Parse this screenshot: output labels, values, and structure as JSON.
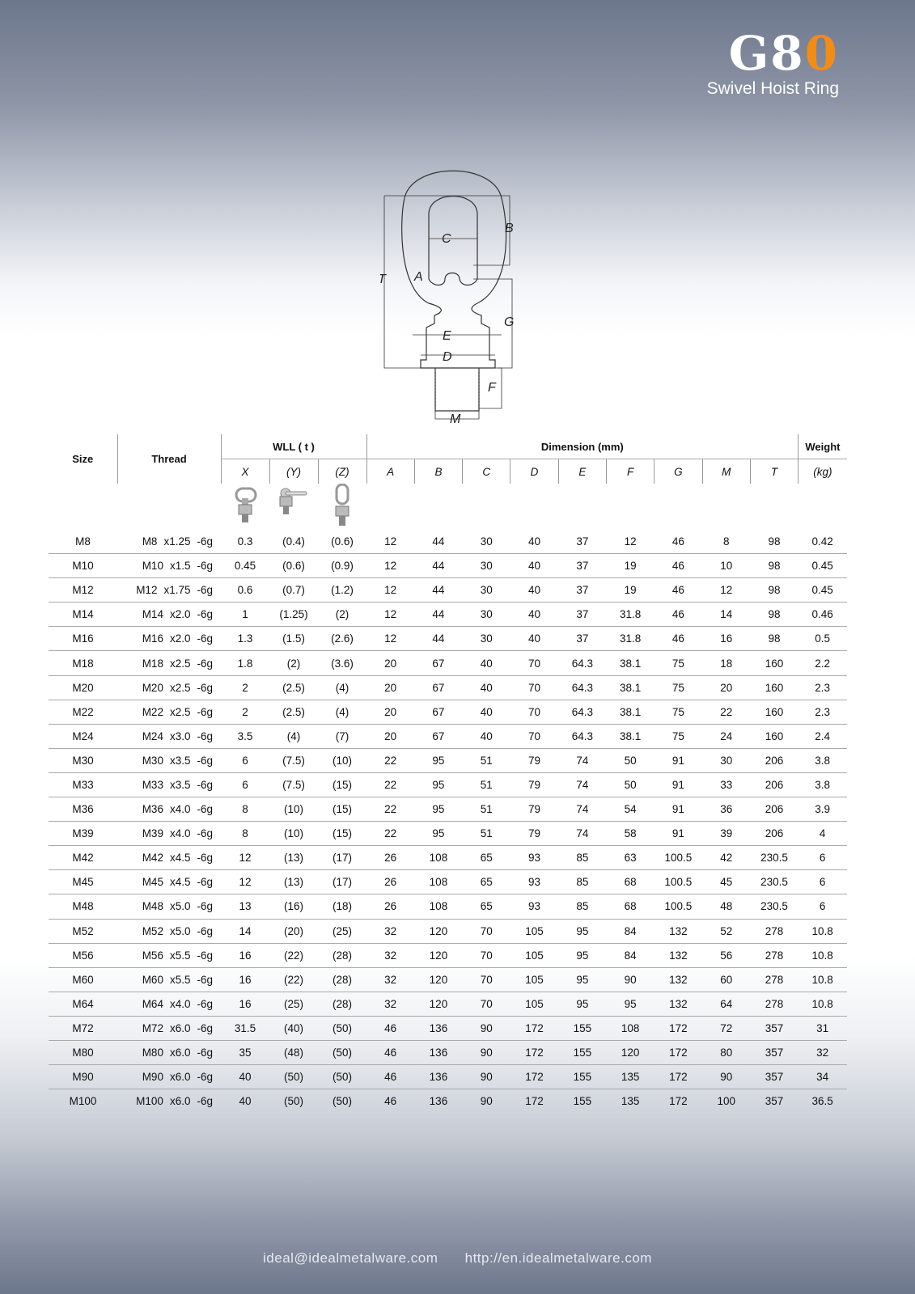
{
  "logo": {
    "grade": "G8",
    "grade_accent": "0",
    "subtitle": "Swivel Hoist Ring"
  },
  "diagram_labels": {
    "B": "B",
    "C": "C",
    "T": "T",
    "A": "A",
    "G": "G",
    "E": "E",
    "D": "D",
    "F": "F",
    "M": "M"
  },
  "table": {
    "headers": {
      "size": "Size",
      "thread": "Thread",
      "wll": "WLL ( t )",
      "dimension": "Dimension (mm)",
      "weight": "Weight",
      "wll_sub": [
        "X",
        "(Y)",
        "(Z)"
      ],
      "dim_sub": [
        "A",
        "B",
        "C",
        "D",
        "E",
        "F",
        "G",
        "M",
        "T"
      ],
      "weight_sub": "(kg)"
    },
    "load_icons": [
      "hoist-ring-x-direction",
      "hoist-ring-y-direction",
      "hoist-ring-z-direction"
    ],
    "rows": [
      [
        "M8",
        [
          "M8",
          "x1.25",
          "-6g"
        ],
        "0.3",
        "(0.4)",
        "(0.6)",
        "12",
        "44",
        "30",
        "40",
        "37",
        "12",
        "46",
        "8",
        "98",
        "0.42"
      ],
      [
        "M10",
        [
          "M10",
          "x1.5",
          "-6g"
        ],
        "0.45",
        "(0.6)",
        "(0.9)",
        "12",
        "44",
        "30",
        "40",
        "37",
        "19",
        "46",
        "10",
        "98",
        "0.45"
      ],
      [
        "M12",
        [
          "M12",
          "x1.75",
          "-6g"
        ],
        "0.6",
        "(0.7)",
        "(1.2)",
        "12",
        "44",
        "30",
        "40",
        "37",
        "19",
        "46",
        "12",
        "98",
        "0.45"
      ],
      [
        "M14",
        [
          "M14",
          "x2.0",
          "-6g"
        ],
        "1",
        "(1.25)",
        "(2)",
        "12",
        "44",
        "30",
        "40",
        "37",
        "31.8",
        "46",
        "14",
        "98",
        "0.46"
      ],
      [
        "M16",
        [
          "M16",
          "x2.0",
          "-6g"
        ],
        "1.3",
        "(1.5)",
        "(2.6)",
        "12",
        "44",
        "30",
        "40",
        "37",
        "31.8",
        "46",
        "16",
        "98",
        "0.5"
      ],
      [
        "M18",
        [
          "M18",
          "x2.5",
          "-6g"
        ],
        "1.8",
        "(2)",
        "(3.6)",
        "20",
        "67",
        "40",
        "70",
        "64.3",
        "38.1",
        "75",
        "18",
        "160",
        "2.2"
      ],
      [
        "M20",
        [
          "M20",
          "x2.5",
          "-6g"
        ],
        "2",
        "(2.5)",
        "(4)",
        "20",
        "67",
        "40",
        "70",
        "64.3",
        "38.1",
        "75",
        "20",
        "160",
        "2.3"
      ],
      [
        "M22",
        [
          "M22",
          "x2.5",
          "-6g"
        ],
        "2",
        "(2.5)",
        "(4)",
        "20",
        "67",
        "40",
        "70",
        "64.3",
        "38.1",
        "75",
        "22",
        "160",
        "2.3"
      ],
      [
        "M24",
        [
          "M24",
          "x3.0",
          "-6g"
        ],
        "3.5",
        "(4)",
        "(7)",
        "20",
        "67",
        "40",
        "70",
        "64.3",
        "38.1",
        "75",
        "24",
        "160",
        "2.4"
      ],
      [
        "M30",
        [
          "M30",
          "x3.5",
          "-6g"
        ],
        "6",
        "(7.5)",
        "(10)",
        "22",
        "95",
        "51",
        "79",
        "74",
        "50",
        "91",
        "30",
        "206",
        "3.8"
      ],
      [
        "M33",
        [
          "M33",
          "x3.5",
          "-6g"
        ],
        "6",
        "(7.5)",
        "(15)",
        "22",
        "95",
        "51",
        "79",
        "74",
        "50",
        "91",
        "33",
        "206",
        "3.8"
      ],
      [
        "M36",
        [
          "M36",
          "x4.0",
          "-6g"
        ],
        "8",
        "(10)",
        "(15)",
        "22",
        "95",
        "51",
        "79",
        "74",
        "54",
        "91",
        "36",
        "206",
        "3.9"
      ],
      [
        "M39",
        [
          "M39",
          "x4.0",
          "-6g"
        ],
        "8",
        "(10)",
        "(15)",
        "22",
        "95",
        "51",
        "79",
        "74",
        "58",
        "91",
        "39",
        "206",
        "4"
      ],
      [
        "M42",
        [
          "M42",
          "x4.5",
          "-6g"
        ],
        "12",
        "(13)",
        "(17)",
        "26",
        "108",
        "65",
        "93",
        "85",
        "63",
        "100.5",
        "42",
        "230.5",
        "6"
      ],
      [
        "M45",
        [
          "M45",
          "x4.5",
          "-6g"
        ],
        "12",
        "(13)",
        "(17)",
        "26",
        "108",
        "65",
        "93",
        "85",
        "68",
        "100.5",
        "45",
        "230.5",
        "6"
      ],
      [
        "M48",
        [
          "M48",
          "x5.0",
          "-6g"
        ],
        "13",
        "(16)",
        "(18)",
        "26",
        "108",
        "65",
        "93",
        "85",
        "68",
        "100.5",
        "48",
        "230.5",
        "6"
      ],
      [
        "M52",
        [
          "M52",
          "x5.0",
          "-6g"
        ],
        "14",
        "(20)",
        "(25)",
        "32",
        "120",
        "70",
        "105",
        "95",
        "84",
        "132",
        "52",
        "278",
        "10.8"
      ],
      [
        "M56",
        [
          "M56",
          "x5.5",
          "-6g"
        ],
        "16",
        "(22)",
        "(28)",
        "32",
        "120",
        "70",
        "105",
        "95",
        "84",
        "132",
        "56",
        "278",
        "10.8"
      ],
      [
        "M60",
        [
          "M60",
          "x5.5",
          "-6g"
        ],
        "16",
        "(22)",
        "(28)",
        "32",
        "120",
        "70",
        "105",
        "95",
        "90",
        "132",
        "60",
        "278",
        "10.8"
      ],
      [
        "M64",
        [
          "M64",
          "x4.0",
          "-6g"
        ],
        "16",
        "(25)",
        "(28)",
        "32",
        "120",
        "70",
        "105",
        "95",
        "95",
        "132",
        "64",
        "278",
        "10.8"
      ],
      [
        "M72",
        [
          "M72",
          "x6.0",
          "-6g"
        ],
        "31.5",
        "(40)",
        "(50)",
        "46",
        "136",
        "90",
        "172",
        "155",
        "108",
        "172",
        "72",
        "357",
        "31"
      ],
      [
        "M80",
        [
          "M80",
          "x6.0",
          "-6g"
        ],
        "35",
        "(48)",
        "(50)",
        "46",
        "136",
        "90",
        "172",
        "155",
        "120",
        "172",
        "80",
        "357",
        "32"
      ],
      [
        "M90",
        [
          "M90",
          "x6.0",
          "-6g"
        ],
        "40",
        "(50)",
        "(50)",
        "46",
        "136",
        "90",
        "172",
        "155",
        "135",
        "172",
        "90",
        "357",
        "34"
      ],
      [
        "M100",
        [
          "M100",
          "x6.0",
          "-6g"
        ],
        "40",
        "(50)",
        "(50)",
        "46",
        "136",
        "90",
        "172",
        "155",
        "135",
        "172",
        "100",
        "357",
        "36.5"
      ]
    ]
  },
  "footer": {
    "email": "ideal@idealmetalware.com",
    "website": "http://en.idealmetalware.com"
  }
}
